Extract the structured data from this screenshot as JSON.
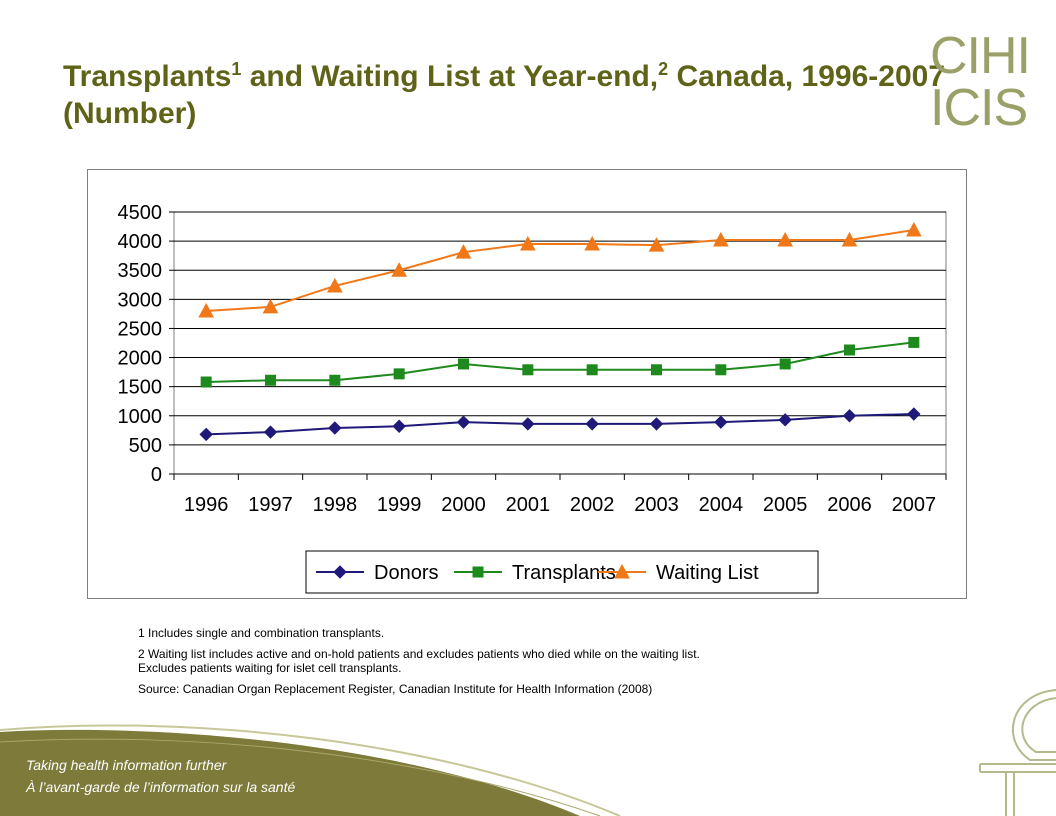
{
  "header": {
    "title_part1": "Transplants",
    "title_sup1": "1",
    "title_part2": " and Waiting List at Year-end,",
    "title_sup2": "2",
    "title_part3": " Canada, 1996-2007 (Number)",
    "logo_line1": "CIHI",
    "logo_line2": "ICIS"
  },
  "chart_data": {
    "type": "line",
    "categories": [
      "1996",
      "1997",
      "1998",
      "1999",
      "2000",
      "2001",
      "2002",
      "2003",
      "2004",
      "2005",
      "2006",
      "2007"
    ],
    "ylim": [
      0,
      4500
    ],
    "yticks": [
      0,
      500,
      1000,
      1500,
      2000,
      2500,
      3000,
      3500,
      4000,
      4500
    ],
    "grid": true,
    "legend_position": "bottom",
    "series": [
      {
        "name": "Donors",
        "marker": "diamond",
        "color": "#1f1a7a",
        "values": [
          680,
          720,
          790,
          820,
          890,
          860,
          860,
          860,
          890,
          930,
          1000,
          1030
        ]
      },
      {
        "name": "Transplants",
        "marker": "square",
        "color": "#1e8a1e",
        "values": [
          1580,
          1610,
          1610,
          1720,
          1890,
          1790,
          1790,
          1790,
          1790,
          1890,
          2130,
          2260
        ]
      },
      {
        "name": "Waiting List",
        "marker": "triangle",
        "color": "#f07818",
        "values": [
          2800,
          2870,
          3230,
          3500,
          3810,
          3950,
          3950,
          3930,
          4020,
          4020,
          4020,
          4190
        ]
      }
    ]
  },
  "notes": {
    "note1": "1 Includes single and combination transplants.",
    "note2_line1": "2  Waiting list includes active and on-hold patients and excludes patients who died while on the waiting list.",
    "note2_line2": "Excludes patients waiting for islet cell transplants.",
    "source": "Source: Canadian Organ Replacement Register, Canadian Institute for Health Information (2008)"
  },
  "footer": {
    "tagline_en": "Taking health information further",
    "tagline_fr": "À l’avant-garde de l’information sur la santé",
    "band_color": "#7d7a3a"
  }
}
